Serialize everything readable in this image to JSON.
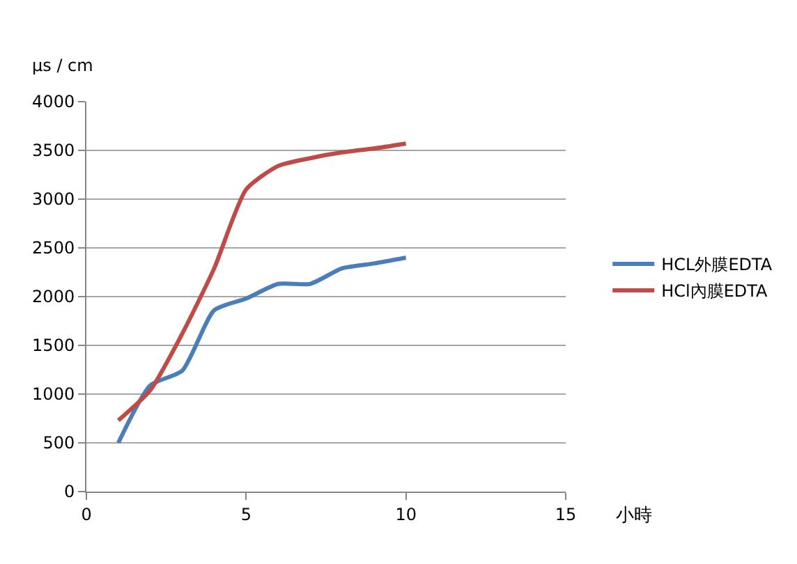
{
  "chart_data": {
    "type": "line",
    "ylabel": "µs / cm",
    "xlabel": "小時",
    "x": [
      1,
      2,
      3,
      4,
      5,
      6,
      7,
      8,
      9,
      10
    ],
    "series": [
      {
        "name": "HCL外膜EDTA",
        "color": "#4a7ebb",
        "values": [
          500,
          1090,
          1240,
          1860,
          1980,
          2130,
          2130,
          2290,
          2340,
          2400
        ]
      },
      {
        "name": "HCl內膜EDTA",
        "color": "#be4b48",
        "values": [
          730,
          1040,
          1620,
          2290,
          3100,
          3340,
          3420,
          3480,
          3520,
          3570
        ]
      }
    ],
    "xlim": [
      0,
      15
    ],
    "xticks": [
      0,
      5,
      10,
      15
    ],
    "ylim": [
      0,
      4000
    ],
    "yticks": [
      0,
      500,
      1000,
      1500,
      2000,
      2500,
      3000,
      3500,
      4000
    ],
    "grid": "y",
    "legend": "right",
    "marker": "none",
    "line_style": "solid"
  }
}
